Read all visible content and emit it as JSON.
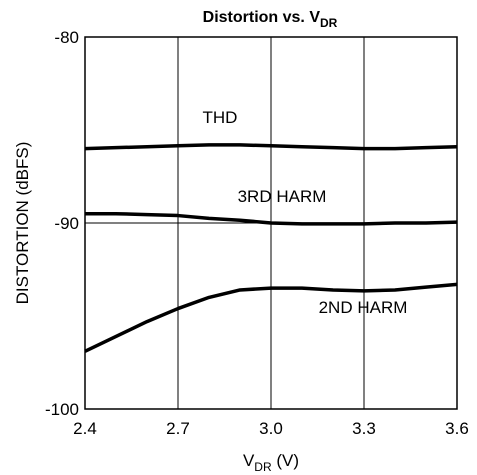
{
  "chart_data": {
    "type": "line",
    "title": {
      "text": "Distortion vs. V",
      "subscript": "DR"
    },
    "xlabel": {
      "text": "V",
      "subscript": "DR",
      "suffix": " (V)"
    },
    "ylabel": "DISTORTION (dBFS)",
    "x": [
      2.4,
      2.5,
      2.6,
      2.7,
      2.8,
      2.9,
      3.0,
      3.1,
      3.2,
      3.3,
      3.4,
      3.5,
      3.6
    ],
    "series": [
      {
        "name": "THD",
        "color": "#000000",
        "values": [
          -86.0,
          -85.95,
          -85.9,
          -85.85,
          -85.8,
          -85.8,
          -85.85,
          -85.9,
          -85.95,
          -86.0,
          -86.0,
          -85.95,
          -85.9
        ]
      },
      {
        "name": "3RD HARM",
        "color": "#000000",
        "values": [
          -89.5,
          -89.5,
          -89.55,
          -89.6,
          -89.75,
          -89.85,
          -90.0,
          -90.05,
          -90.05,
          -90.05,
          -90.0,
          -90.0,
          -89.95
        ]
      },
      {
        "name": "2ND HARM",
        "color": "#000000",
        "values": [
          -96.9,
          -96.1,
          -95.3,
          -94.6,
          -94.0,
          -93.6,
          -93.5,
          -93.5,
          -93.6,
          -93.65,
          -93.6,
          -93.45,
          -93.3
        ]
      }
    ],
    "xlim": [
      2.4,
      3.6
    ],
    "xticks": [
      2.4,
      2.7,
      {
        "value": 3,
        "label": "3.0"
      },
      3.3,
      3.6
    ],
    "ylim": [
      -100,
      -80
    ],
    "yticks": [
      -100,
      -90,
      -80
    ],
    "grid": true
  }
}
